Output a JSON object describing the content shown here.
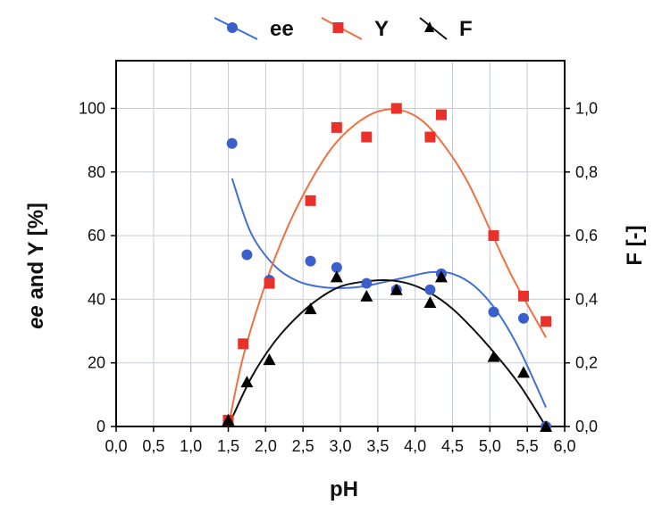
{
  "chart_data": {
    "type": "scatter",
    "xlabel": "pH",
    "ylabel_left": "ee and Y [%]",
    "ylabel_left_italic_part": "ee",
    "ylabel_left_rest": " and Y [%]",
    "ylabel_right": "F [-]",
    "xlim": [
      0.0,
      6.0
    ],
    "ylim_left": [
      0,
      115
    ],
    "ylim_right": [
      0.0,
      1.15
    ],
    "xticks": [
      "0,0",
      "0,5",
      "1,0",
      "1,5",
      "2,0",
      "2,5",
      "3,0",
      "3,5",
      "4,0",
      "4,5",
      "5,0",
      "5,5",
      "6,0"
    ],
    "xtick_values": [
      0,
      0.5,
      1,
      1.5,
      2,
      2.5,
      3,
      3.5,
      4,
      4.5,
      5,
      5.5,
      6
    ],
    "yticks_left": [
      "0",
      "20",
      "40",
      "60",
      "80",
      "100"
    ],
    "ytick_left_values": [
      0,
      20,
      40,
      60,
      80,
      100
    ],
    "yticks_right": [
      "0,0",
      "0,2",
      "0,4",
      "0,6",
      "0,8",
      "1,0"
    ],
    "grid": true,
    "legend_position": "top",
    "series": [
      {
        "name": "ee",
        "axis": "left",
        "marker": "circle",
        "color": "#3a5fcd",
        "line_color": "#3f6fd8",
        "x": [
          1.55,
          1.75,
          2.05,
          2.6,
          2.95,
          3.35,
          3.75,
          4.2,
          4.35,
          5.05,
          5.45,
          5.75
        ],
        "y": [
          89,
          54,
          46,
          52,
          50,
          45,
          43,
          43,
          48,
          36,
          34,
          0
        ],
        "fit_x": [
          1.55,
          1.8,
          2.1,
          2.4,
          2.7,
          3.0,
          3.3,
          3.6,
          3.9,
          4.2,
          4.5,
          4.8,
          5.1,
          5.4,
          5.75
        ],
        "fit_y": [
          78,
          61,
          51,
          46,
          44,
          43.5,
          44,
          45.5,
          47,
          48.5,
          48,
          44,
          36,
          24,
          6
        ]
      },
      {
        "name": "Y",
        "axis": "left",
        "marker": "square",
        "color": "#e8312a",
        "line_color": "#f07040",
        "x": [
          1.5,
          1.7,
          2.05,
          2.6,
          2.95,
          3.35,
          3.75,
          4.2,
          4.35,
          5.05,
          5.45,
          5.75
        ],
        "y": [
          2,
          26,
          45,
          71,
          94,
          91,
          100,
          91,
          98,
          60,
          41,
          33
        ],
        "fit_x": [
          1.5,
          1.7,
          2.0,
          2.3,
          2.6,
          2.9,
          3.2,
          3.5,
          3.8,
          4.1,
          4.4,
          4.7,
          5.0,
          5.3,
          5.75
        ],
        "fit_y": [
          0,
          22,
          45,
          63,
          77,
          88,
          95,
          99,
          99.5,
          96,
          88,
          77,
          62,
          47,
          28
        ]
      },
      {
        "name": "F",
        "axis": "right",
        "marker": "triangle",
        "color": "#000000",
        "line_color": "#111111",
        "x": [
          1.5,
          1.75,
          2.05,
          2.6,
          2.95,
          3.35,
          3.75,
          4.2,
          4.35,
          5.05,
          5.45,
          5.75
        ],
        "y": [
          0.02,
          0.14,
          0.21,
          0.37,
          0.47,
          0.41,
          0.43,
          0.39,
          0.47,
          0.22,
          0.17,
          0.0
        ],
        "fit_x": [
          1.5,
          1.8,
          2.1,
          2.4,
          2.7,
          3.0,
          3.3,
          3.6,
          3.9,
          4.2,
          4.5,
          4.8,
          5.1,
          5.4,
          5.75
        ],
        "fit_y": [
          0.0,
          0.15,
          0.26,
          0.34,
          0.4,
          0.44,
          0.455,
          0.46,
          0.45,
          0.42,
          0.37,
          0.3,
          0.22,
          0.13,
          0.0
        ]
      }
    ]
  }
}
